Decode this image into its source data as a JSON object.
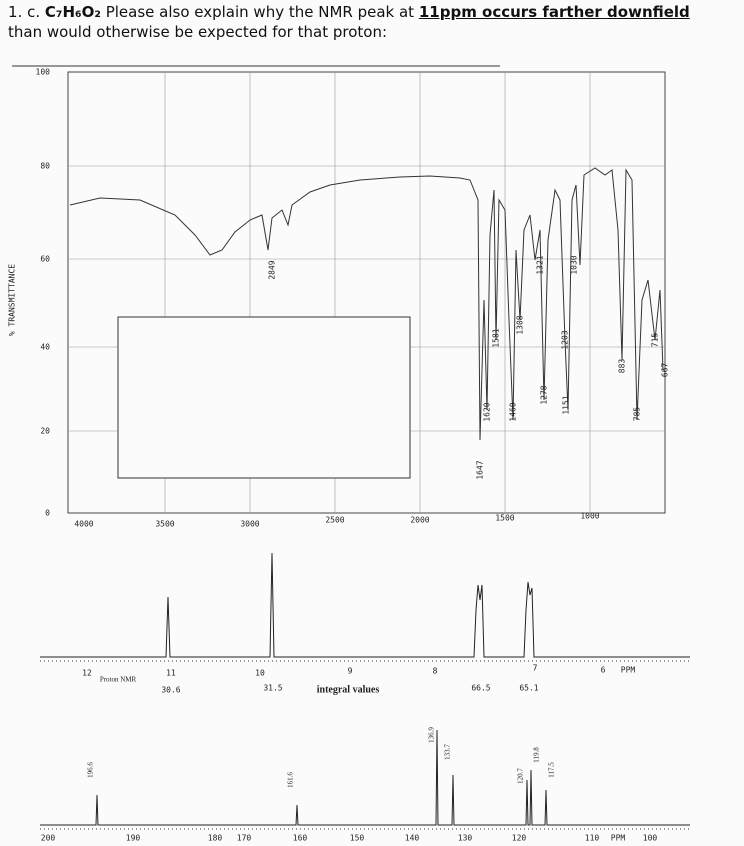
{
  "question": {
    "number": "1. c.",
    "formula": "C₇H₆O₂",
    "text_before": "Please also explain why the NMR peak at",
    "emphasis": "11ppm occurs farther downfield",
    "text_after": "than would otherwise be expected for that proton:"
  },
  "ir_spectrum": {
    "y_axis_label": "% TRANSMITTANCE",
    "y_ticks": [
      "100",
      "80",
      "60",
      "40",
      "20",
      "0"
    ],
    "x_ticks": [
      "4000",
      "3500",
      "3000",
      "2500",
      "2000",
      "1500",
      "1000"
    ],
    "peak_labels": [
      "2849",
      "1647",
      "1620",
      "1581",
      "1460",
      "1308",
      "1278",
      "1321",
      "1203",
      "1151",
      "1030",
      "883",
      "785",
      "715",
      "667"
    ]
  },
  "proton_nmr": {
    "label": "Proton NMR",
    "ppm_ticks": [
      "12",
      "11",
      "10",
      "9",
      "8",
      "7",
      "6"
    ],
    "ppm_unit": "PPM",
    "integrals": [
      "30.6",
      "31.5",
      "66.5",
      "65.1"
    ],
    "integral_label": "integral values"
  },
  "carbon_nmr": {
    "peak_labels": [
      "196.6",
      "161.6",
      "136.9",
      "133.7",
      "120.7",
      "119.8",
      "117.5"
    ],
    "ticks": [
      "200",
      "190",
      "180",
      "170",
      "160",
      "150",
      "140",
      "130",
      "120",
      "110",
      "100"
    ],
    "ppm_unit": "PPM"
  }
}
